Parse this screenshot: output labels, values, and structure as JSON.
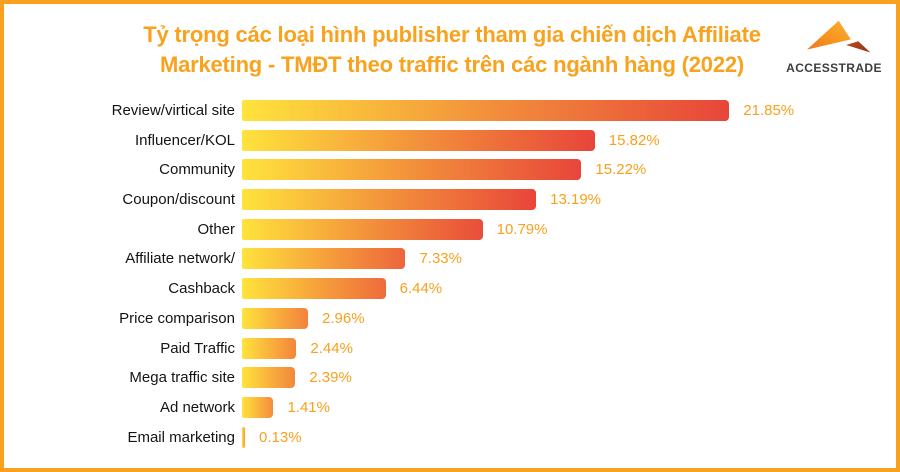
{
  "header": {
    "title_line1": "Tỷ trọng các loại hình publisher tham gia chiến dịch Affiliate",
    "title_line2": "Marketing - TMĐT theo traffic trên các ngành hàng (2022)",
    "title_color": "#F9A21E",
    "logo_text": "ACCESSTRADE"
  },
  "chart_data": {
    "type": "bar",
    "orientation": "horizontal",
    "title": "Tỷ trọng các loại hình publisher tham gia chiến dịch Affiliate Marketing - TMĐT theo traffic trên các ngành hàng (2022)",
    "categories": [
      "Review/virtical site",
      "Influencer/KOL",
      "Community",
      "Coupon/discount",
      "Other",
      "Affiliate network/",
      "Cashback",
      "Price comparison",
      "Paid Traffic",
      "Mega traffic site",
      "Ad network",
      "Email marketing"
    ],
    "values": [
      21.85,
      15.82,
      15.22,
      13.19,
      10.79,
      7.33,
      6.44,
      2.96,
      2.44,
      2.39,
      1.41,
      0.13
    ],
    "value_labels": [
      "21.85%",
      "15.82%",
      "15.22%",
      "13.19%",
      "10.79%",
      "7.33%",
      "6.44%",
      "2.96%",
      "2.44%",
      "2.39%",
      "1.41%",
      "0.13%"
    ],
    "xlim": [
      0,
      22.5
    ],
    "grid": false,
    "legend": false,
    "bar_gradient_start": "#FFE33C",
    "bar_gradient_end": "#E8453A",
    "value_label_color": "#F9A01C",
    "category_label_color": "#141414"
  },
  "colors": {
    "border": "#F9A11D",
    "background": "#FFFFFF",
    "logo_text": "#3E3E3E",
    "logo_orange": "#F7941D",
    "logo_dark": "#A63E1D"
  }
}
